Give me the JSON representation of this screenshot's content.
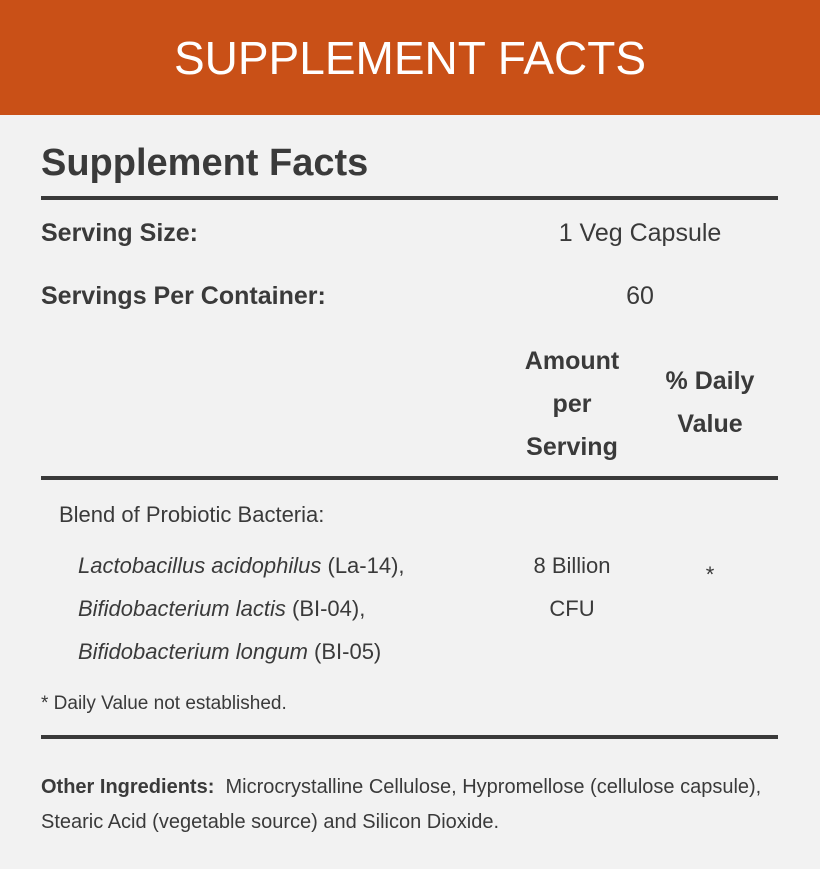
{
  "header": {
    "banner": "SUPPLEMENT FACTS"
  },
  "panel": {
    "title": "Supplement Facts",
    "serving_size": {
      "label": "Serving Size:",
      "value": "1 Veg Capsule"
    },
    "servings_per_container": {
      "label": "Servings Per Container:",
      "value": 60
    },
    "columns": {
      "amount": "Amount per Serving",
      "daily_value": "% Daily Value"
    },
    "blend": {
      "name": "Blend of Probiotic Bacteria:",
      "strains": [
        {
          "name": "Lactobacillus acidophilus",
          "code": " (La-14),"
        },
        {
          "name": "Bifidobacterium lactis",
          "code": " (BI-04),"
        },
        {
          "name": "Bifidobacterium longum",
          "code": " (BI-05)"
        }
      ],
      "amount": "8 Billion CFU",
      "daily_value": "*"
    },
    "footnote": "* Daily Value not established.",
    "other_ingredients": {
      "label": "Other Ingredients:",
      "text": "Microcrystalline Cellulose, Hypromellose (cellulose capsule), Stearic Acid (vegetable source) and Silicon Dioxide."
    }
  }
}
